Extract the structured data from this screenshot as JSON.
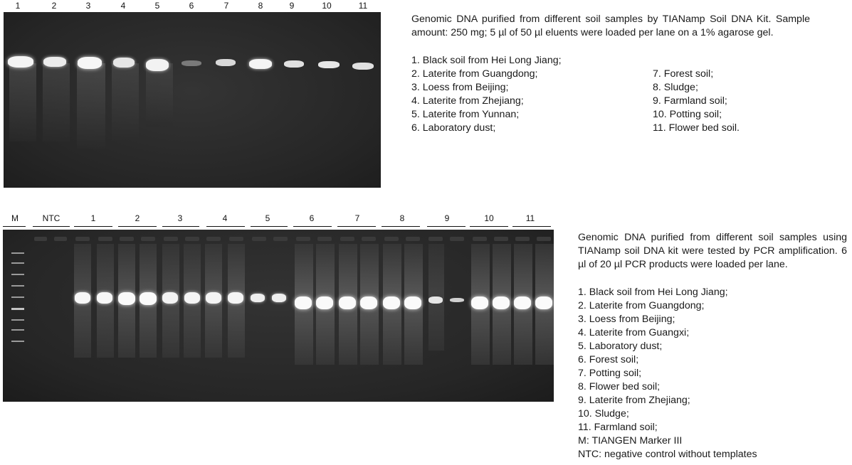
{
  "top_figure": {
    "lane_labels": [
      "1",
      "2",
      "3",
      "4",
      "5",
      "6",
      "7",
      "8",
      "9",
      "10",
      "11"
    ],
    "caption": "Genomic DNA purified from different soil samples by TIANamp Soil DNA Kit. Sample amount: 250 mg; 5 µl of 50 µl eluents were loaded per lane on a 1% agarose gel.",
    "legend_left": [
      "1. Black soil from Hei Long Jiang;",
      "2. Laterite from Guangdong;",
      "3. Loess from Beijing;",
      "4. Laterite from Zhejiang;",
      "5. Laterite from Yunnan;",
      "6. Laboratory dust;"
    ],
    "legend_right": [
      "7. Forest soil;",
      "8. Sludge;",
      "9. Farmland soil;",
      "10. Potting soil;",
      "11. Flower bed soil."
    ]
  },
  "bottom_figure": {
    "lane_labels": [
      "M",
      "NTC",
      "1",
      "2",
      "3",
      "4",
      "5",
      "6",
      "7",
      "8",
      "9",
      "10",
      "11"
    ],
    "caption": "Genomic DNA purified from different soil samples using TIANamp soil DNA kit were tested by PCR amplification. 6 µl of 20 µl PCR products were loaded per lane.",
    "legend": [
      "1. Black soil from Hei Long Jiang;",
      "2. Laterite from Guangdong;",
      "3. Loess from Beijing;",
      "4. Laterite from Guangxi;",
      "5. Laboratory dust;",
      "6. Forest soil;",
      "7. Potting soil;",
      "8. Flower bed soil;",
      "9. Laterite from Zhejiang;",
      "10. Sludge;",
      "11. Farmland soil;",
      "M: TIANGEN Marker III",
      "NTC: negative control without templates"
    ]
  }
}
